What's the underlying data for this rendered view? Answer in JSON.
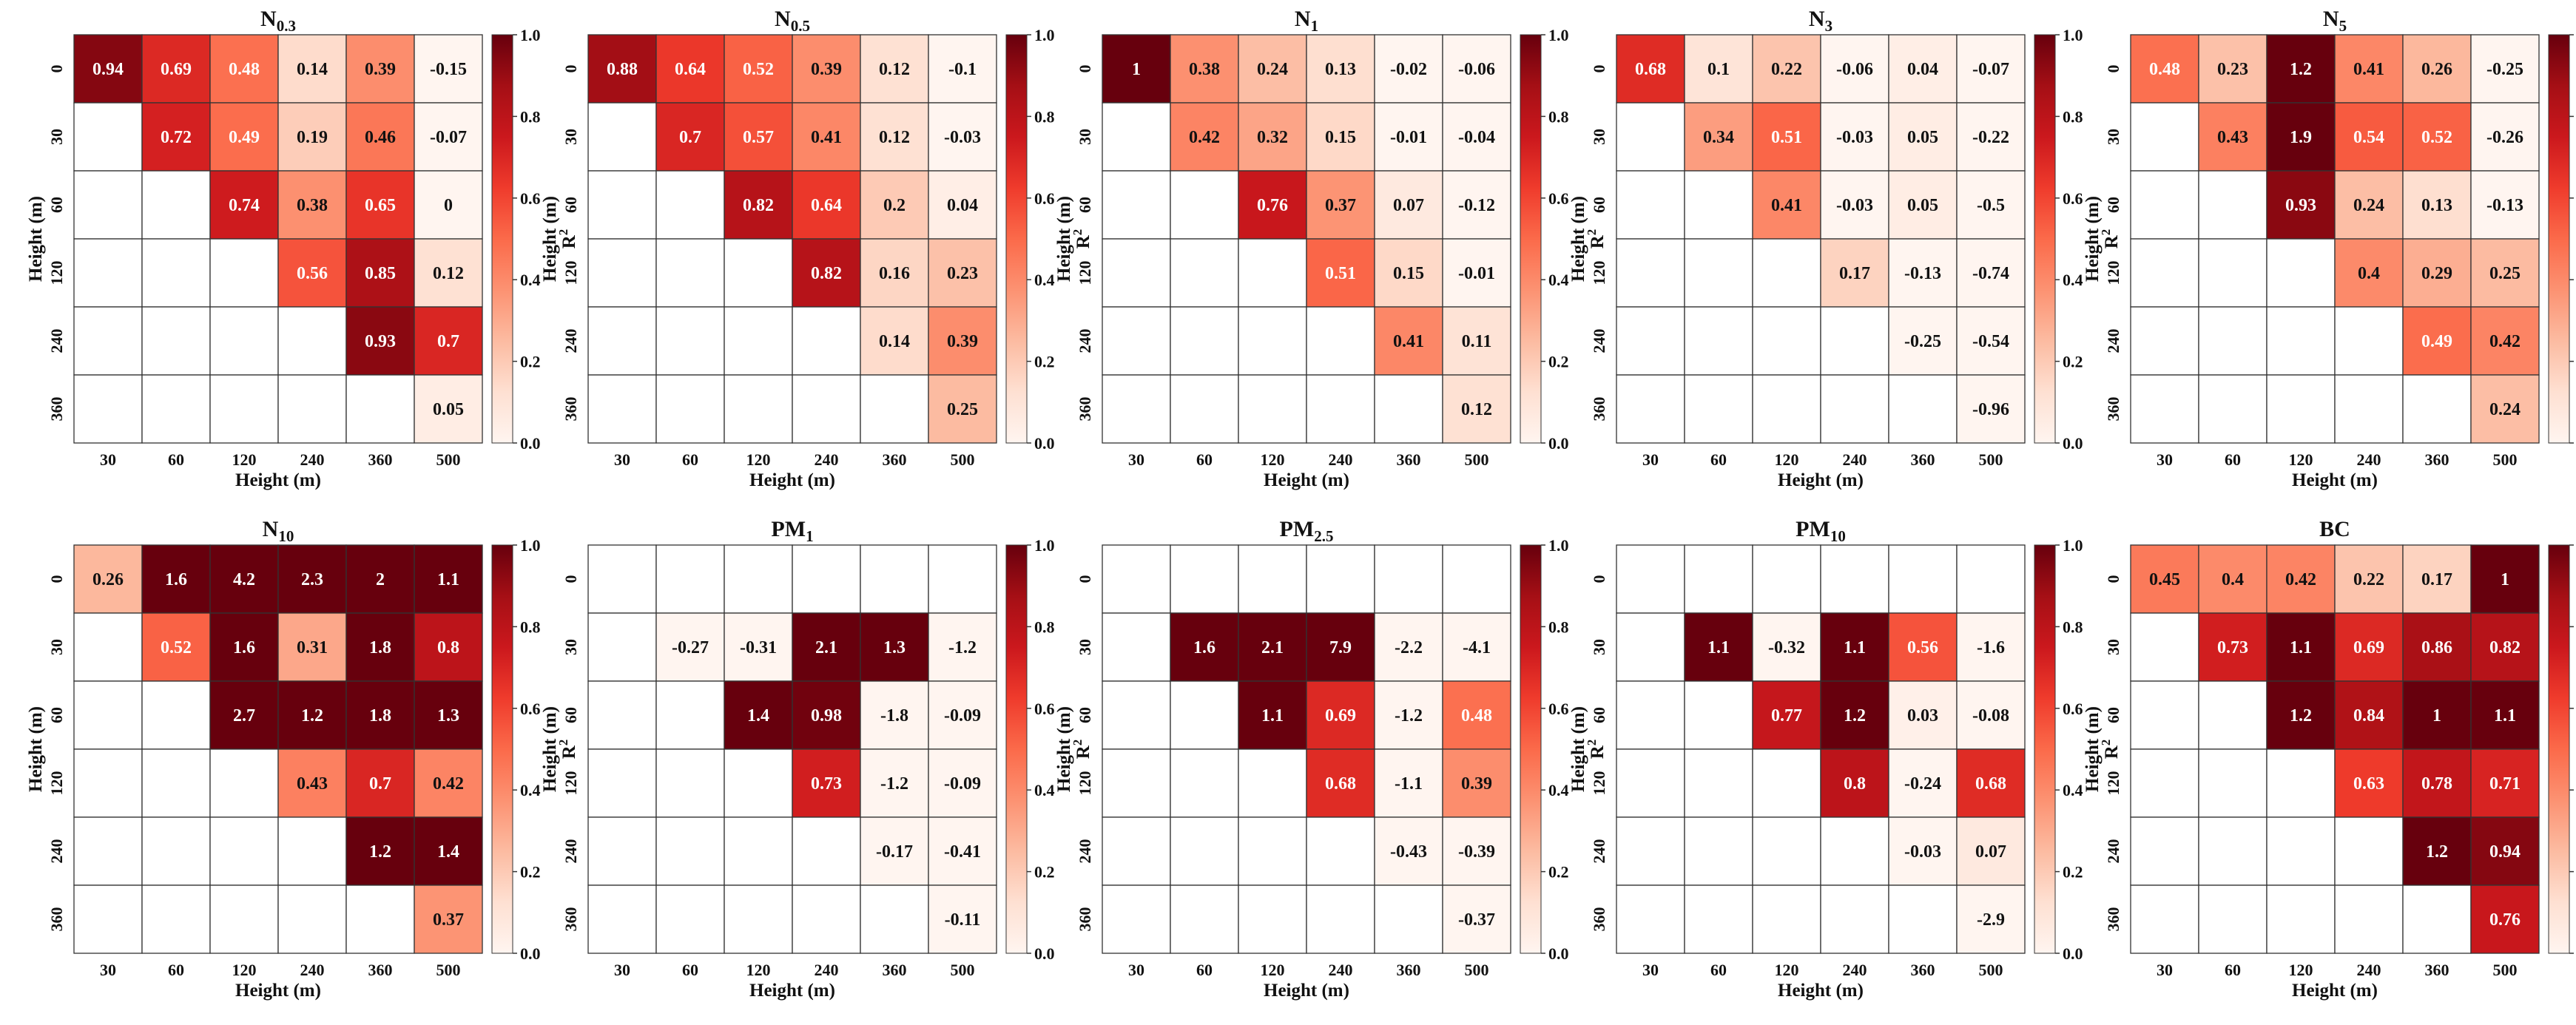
{
  "colorbar": {
    "label": "R",
    "label_exponent": "2",
    "ticks": [
      "1.0",
      "0.8",
      "0.6",
      "0.4",
      "0.2",
      "0.0"
    ],
    "range": [
      0.0,
      1.0
    ],
    "colors": [
      "#fff5f0",
      "#fee0d2",
      "#fcbba1",
      "#fc9272",
      "#fb6a4a",
      "#ef3b2c",
      "#cb181d",
      "#a50f15",
      "#67000d"
    ]
  },
  "chart_data": [
    {
      "type": "heatmap",
      "title": "N",
      "title_sub": "0.3",
      "xlabel": "Height (m)",
      "ylabel": "Height (m)",
      "x_ticks": [
        "30",
        "60",
        "120",
        "240",
        "360",
        "500"
      ],
      "y_ticks": [
        "0",
        "30",
        "60",
        "120",
        "240",
        "360"
      ],
      "values": [
        [
          0.94,
          0.69,
          0.48,
          0.14,
          0.39,
          -0.15
        ],
        [
          null,
          0.72,
          0.49,
          0.19,
          0.46,
          -0.07
        ],
        [
          null,
          null,
          0.74,
          0.38,
          0.65,
          0
        ],
        [
          null,
          null,
          null,
          0.56,
          0.85,
          0.12
        ],
        [
          null,
          null,
          null,
          null,
          0.93,
          0.7
        ],
        [
          null,
          null,
          null,
          null,
          null,
          0.05
        ]
      ]
    },
    {
      "type": "heatmap",
      "title": "N",
      "title_sub": "0.5",
      "xlabel": "Height (m)",
      "ylabel": "Height (m)",
      "x_ticks": [
        "30",
        "60",
        "120",
        "240",
        "360",
        "500"
      ],
      "y_ticks": [
        "0",
        "30",
        "60",
        "120",
        "240",
        "360"
      ],
      "values": [
        [
          0.88,
          0.64,
          0.52,
          0.39,
          0.12,
          -0.1
        ],
        [
          null,
          0.7,
          0.57,
          0.41,
          0.12,
          -0.03
        ],
        [
          null,
          null,
          0.82,
          0.64,
          0.2,
          0.04
        ],
        [
          null,
          null,
          null,
          0.82,
          0.16,
          0.23
        ],
        [
          null,
          null,
          null,
          null,
          0.14,
          0.39
        ],
        [
          null,
          null,
          null,
          null,
          null,
          0.25
        ]
      ]
    },
    {
      "type": "heatmap",
      "title": "N",
      "title_sub": "1",
      "xlabel": "Height (m)",
      "ylabel": "Height (m)",
      "x_ticks": [
        "30",
        "60",
        "120",
        "240",
        "360",
        "500"
      ],
      "y_ticks": [
        "0",
        "30",
        "60",
        "120",
        "240",
        "360"
      ],
      "values": [
        [
          1,
          0.38,
          0.24,
          0.13,
          -0.02,
          -0.06
        ],
        [
          null,
          0.42,
          0.32,
          0.15,
          -0.01,
          -0.04
        ],
        [
          null,
          null,
          0.76,
          0.37,
          0.07,
          -0.12
        ],
        [
          null,
          null,
          null,
          0.51,
          0.15,
          -0.01
        ],
        [
          null,
          null,
          null,
          null,
          0.41,
          0.11
        ],
        [
          null,
          null,
          null,
          null,
          null,
          0.12
        ]
      ]
    },
    {
      "type": "heatmap",
      "title": "N",
      "title_sub": "3",
      "xlabel": "Height (m)",
      "ylabel": "Height (m)",
      "x_ticks": [
        "30",
        "60",
        "120",
        "240",
        "360",
        "500"
      ],
      "y_ticks": [
        "0",
        "30",
        "60",
        "120",
        "240",
        "360"
      ],
      "values": [
        [
          0.68,
          0.1,
          0.22,
          -0.06,
          0.04,
          -0.07
        ],
        [
          null,
          0.34,
          0.51,
          -0.03,
          0.05,
          -0.22
        ],
        [
          null,
          null,
          0.41,
          -0.03,
          0.05,
          -0.5
        ],
        [
          null,
          null,
          null,
          0.17,
          -0.13,
          -0.74
        ],
        [
          null,
          null,
          null,
          null,
          -0.25,
          -0.54
        ],
        [
          null,
          null,
          null,
          null,
          null,
          -0.96
        ]
      ]
    },
    {
      "type": "heatmap",
      "title": "N",
      "title_sub": "5",
      "xlabel": "Height (m)",
      "ylabel": "Height (m)",
      "x_ticks": [
        "30",
        "60",
        "120",
        "240",
        "360",
        "500"
      ],
      "y_ticks": [
        "0",
        "30",
        "60",
        "120",
        "240",
        "360"
      ],
      "values": [
        [
          0.48,
          0.23,
          1.2,
          0.41,
          0.26,
          -0.25
        ],
        [
          null,
          0.43,
          1.9,
          0.54,
          0.52,
          -0.26
        ],
        [
          null,
          null,
          0.93,
          0.24,
          0.13,
          -0.13
        ],
        [
          null,
          null,
          null,
          0.4,
          0.29,
          0.25
        ],
        [
          null,
          null,
          null,
          null,
          0.49,
          0.42
        ],
        [
          null,
          null,
          null,
          null,
          null,
          0.24
        ]
      ]
    },
    {
      "type": "heatmap",
      "title": "N",
      "title_sub": "10",
      "xlabel": "Height (m)",
      "ylabel": "Height (m)",
      "x_ticks": [
        "30",
        "60",
        "120",
        "240",
        "360",
        "500"
      ],
      "y_ticks": [
        "0",
        "30",
        "60",
        "120",
        "240",
        "360"
      ],
      "values": [
        [
          0.26,
          1.6,
          4.2,
          2.3,
          2,
          1.1
        ],
        [
          null,
          0.52,
          1.6,
          0.31,
          1.8,
          0.8
        ],
        [
          null,
          null,
          2.7,
          1.2,
          1.8,
          1.3
        ],
        [
          null,
          null,
          null,
          0.43,
          0.7,
          0.42
        ],
        [
          null,
          null,
          null,
          null,
          1.2,
          1.4
        ],
        [
          null,
          null,
          null,
          null,
          null,
          0.37
        ]
      ]
    },
    {
      "type": "heatmap",
      "title": "PM",
      "title_sub": "1",
      "xlabel": "Height (m)",
      "ylabel": "Height (m)",
      "x_ticks": [
        "30",
        "60",
        "120",
        "240",
        "360",
        "500"
      ],
      "y_ticks": [
        "0",
        "30",
        "60",
        "120",
        "240",
        "360"
      ],
      "values": [
        [
          null,
          null,
          null,
          null,
          null,
          null
        ],
        [
          null,
          -0.27,
          -0.31,
          2.1,
          1.3,
          -1.2
        ],
        [
          null,
          null,
          1.4,
          0.98,
          -1.8,
          -0.09
        ],
        [
          null,
          null,
          null,
          0.73,
          -1.2,
          -0.09
        ],
        [
          null,
          null,
          null,
          null,
          -0.17,
          -0.41
        ],
        [
          null,
          null,
          null,
          null,
          null,
          -0.11
        ]
      ]
    },
    {
      "type": "heatmap",
      "title": "PM",
      "title_sub": "2.5",
      "xlabel": "Height (m)",
      "ylabel": "Height (m)",
      "x_ticks": [
        "30",
        "60",
        "120",
        "240",
        "360",
        "500"
      ],
      "y_ticks": [
        "0",
        "30",
        "60",
        "120",
        "240",
        "360"
      ],
      "values": [
        [
          null,
          null,
          null,
          null,
          null,
          null
        ],
        [
          null,
          1.6,
          2.1,
          7.9,
          -2.2,
          -4.1
        ],
        [
          null,
          null,
          1.1,
          0.69,
          -1.2,
          0.48
        ],
        [
          null,
          null,
          null,
          0.68,
          -1.1,
          0.39
        ],
        [
          null,
          null,
          null,
          null,
          -0.43,
          -0.39
        ],
        [
          null,
          null,
          null,
          null,
          null,
          -0.37
        ]
      ]
    },
    {
      "type": "heatmap",
      "title": "PM",
      "title_sub": "10",
      "xlabel": "Height (m)",
      "ylabel": "Height (m)",
      "x_ticks": [
        "30",
        "60",
        "120",
        "240",
        "360",
        "500"
      ],
      "y_ticks": [
        "0",
        "30",
        "60",
        "120",
        "240",
        "360"
      ],
      "values": [
        [
          null,
          null,
          null,
          null,
          null,
          null
        ],
        [
          null,
          1.1,
          -0.32,
          1.1,
          0.56,
          -1.6
        ],
        [
          null,
          null,
          0.77,
          1.2,
          0.03,
          -0.08
        ],
        [
          null,
          null,
          null,
          0.8,
          -0.24,
          0.68
        ],
        [
          null,
          null,
          null,
          null,
          -0.03,
          0.07
        ],
        [
          null,
          null,
          null,
          null,
          null,
          -2.9
        ]
      ]
    },
    {
      "type": "heatmap",
      "title": "BC",
      "title_sub": "",
      "xlabel": "Height (m)",
      "ylabel": "Height (m)",
      "x_ticks": [
        "30",
        "60",
        "120",
        "240",
        "360",
        "500"
      ],
      "y_ticks": [
        "0",
        "30",
        "60",
        "120",
        "240",
        "360"
      ],
      "values": [
        [
          0.45,
          0.4,
          0.42,
          0.22,
          0.17,
          1
        ],
        [
          null,
          0.73,
          1.1,
          0.69,
          0.86,
          0.82
        ],
        [
          null,
          null,
          1.2,
          0.84,
          1,
          1.1
        ],
        [
          null,
          null,
          null,
          0.63,
          0.78,
          0.71
        ],
        [
          null,
          null,
          null,
          null,
          1.2,
          0.94
        ],
        [
          null,
          null,
          null,
          null,
          null,
          0.76
        ]
      ]
    }
  ]
}
